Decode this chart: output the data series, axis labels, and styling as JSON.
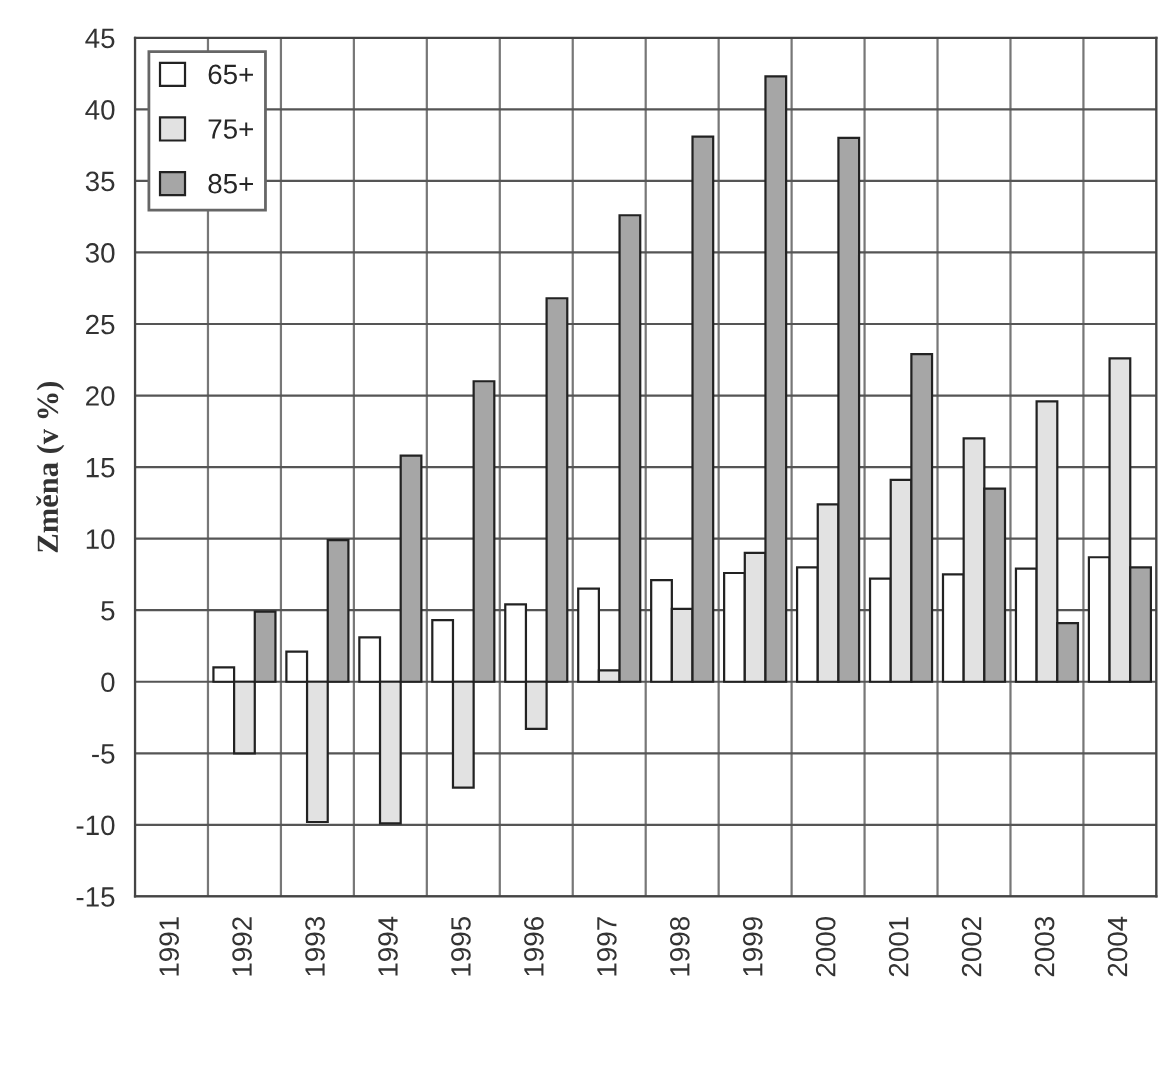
{
  "chart_data": {
    "type": "bar",
    "ylabel": "Změna (v %)",
    "categories": [
      "1991",
      "1992",
      "1993",
      "1994",
      "1995",
      "1996",
      "1997",
      "1998",
      "1999",
      "2000",
      "2001",
      "2002",
      "2003",
      "2004"
    ],
    "series": [
      {
        "name": "65+",
        "color": "#ffffff",
        "values": [
          null,
          1.0,
          2.1,
          3.1,
          4.3,
          5.4,
          6.5,
          7.1,
          7.6,
          8.0,
          7.2,
          7.5,
          7.9,
          8.7
        ]
      },
      {
        "name": "75+",
        "color": "#e2e2e2",
        "values": [
          null,
          -5.0,
          -9.8,
          -9.9,
          -7.4,
          -3.3,
          0.8,
          5.1,
          9.0,
          12.4,
          14.1,
          17.0,
          19.6,
          22.6
        ]
      },
      {
        "name": "85+",
        "color": "#a6a6a6",
        "values": [
          null,
          4.9,
          9.9,
          15.8,
          21.0,
          26.8,
          32.6,
          38.1,
          42.3,
          38.0,
          22.9,
          13.5,
          4.1,
          8.0
        ]
      }
    ],
    "ylim": [
      -15,
      45
    ],
    "yticks": [
      -15,
      -10,
      -5,
      0,
      5,
      10,
      15,
      20,
      25,
      30,
      35,
      40,
      45
    ],
    "grid": true,
    "legend": "top left"
  }
}
